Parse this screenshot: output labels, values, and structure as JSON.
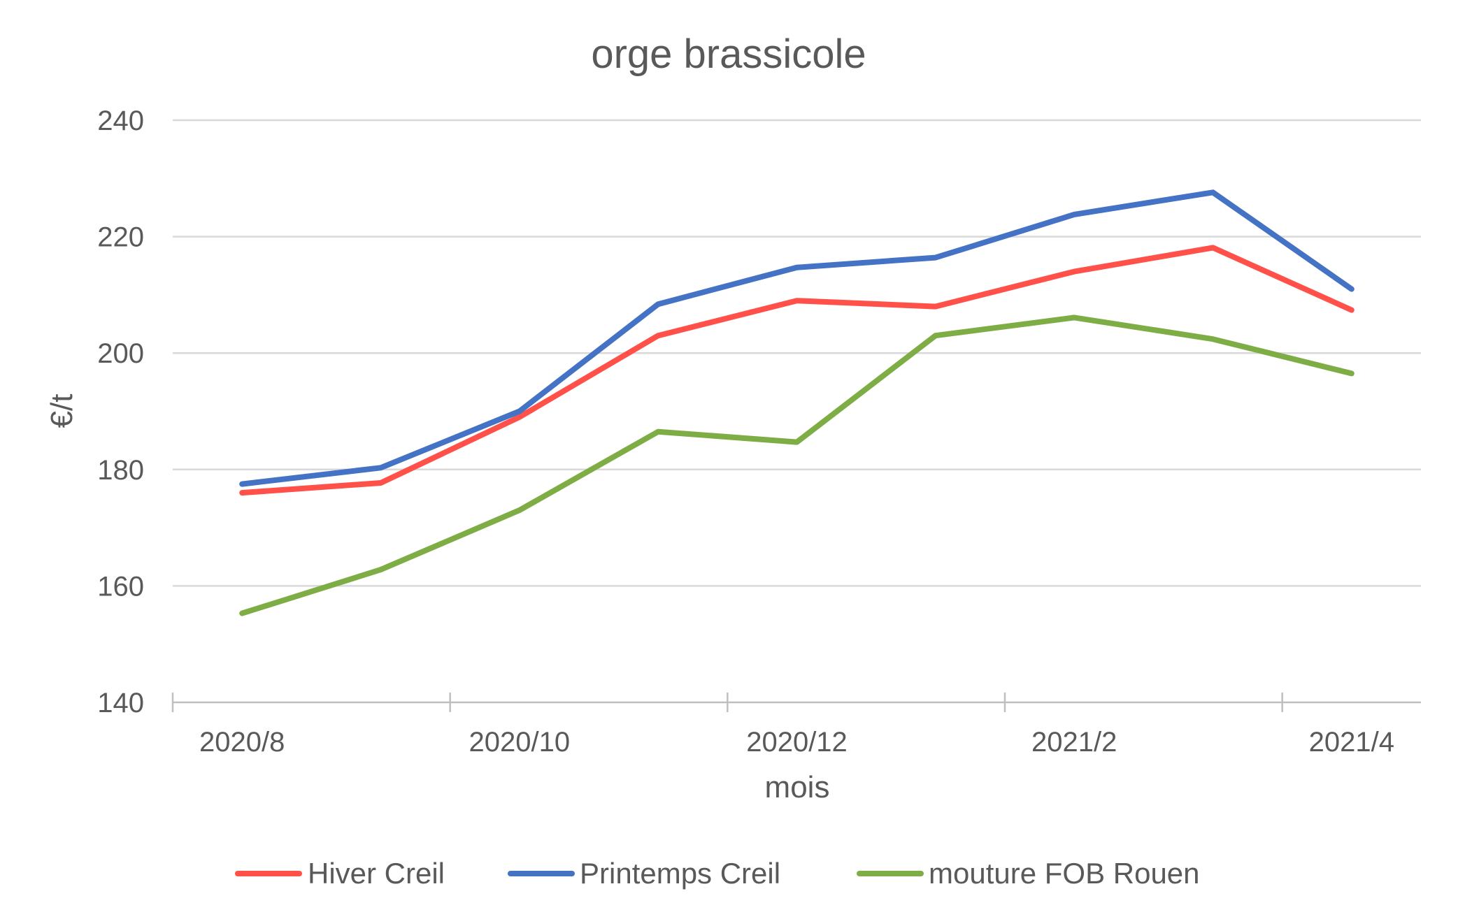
{
  "chart_data": {
    "type": "line",
    "title": "orge brassicole",
    "xlabel": "mois",
    "ylabel": "€/t",
    "categories": [
      "2020/8",
      "2020/9",
      "2020/10",
      "2020/11",
      "2020/12",
      "2021/1",
      "2021/2",
      "2021/3",
      "2021/4"
    ],
    "x_tick_labels": [
      "2020/8",
      "2020/10",
      "2020/12",
      "2021/2",
      "2021/4"
    ],
    "ylim": [
      140,
      240
    ],
    "yticks": [
      140,
      160,
      180,
      200,
      220,
      240
    ],
    "grid": true,
    "legend": "bottom",
    "series": [
      {
        "name": "Hiver Creil",
        "color": "#ff5149",
        "values": [
          176,
          177.7,
          189,
          203,
          209,
          208,
          214,
          218.1,
          207.4
        ]
      },
      {
        "name": "Printemps Creil",
        "color": "#4472c4",
        "values": [
          177.5,
          180.3,
          190,
          208.4,
          214.7,
          216.4,
          223.8,
          227.6,
          211
        ]
      },
      {
        "name": "mouture FOB Rouen",
        "color": "#7ead45",
        "values": [
          155.3,
          162.8,
          173,
          186.5,
          184.7,
          203,
          206.1,
          202.4,
          196.5
        ]
      }
    ]
  }
}
